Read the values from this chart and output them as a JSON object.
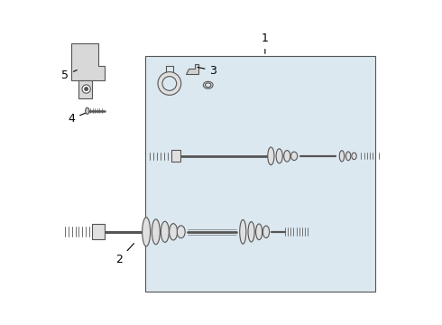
{
  "background_color": "#ffffff",
  "line_color": "#555555",
  "box_color": "#dce8f0",
  "label_color": "#000000",
  "figsize": [
    4.9,
    3.6
  ],
  "dpi": 100
}
